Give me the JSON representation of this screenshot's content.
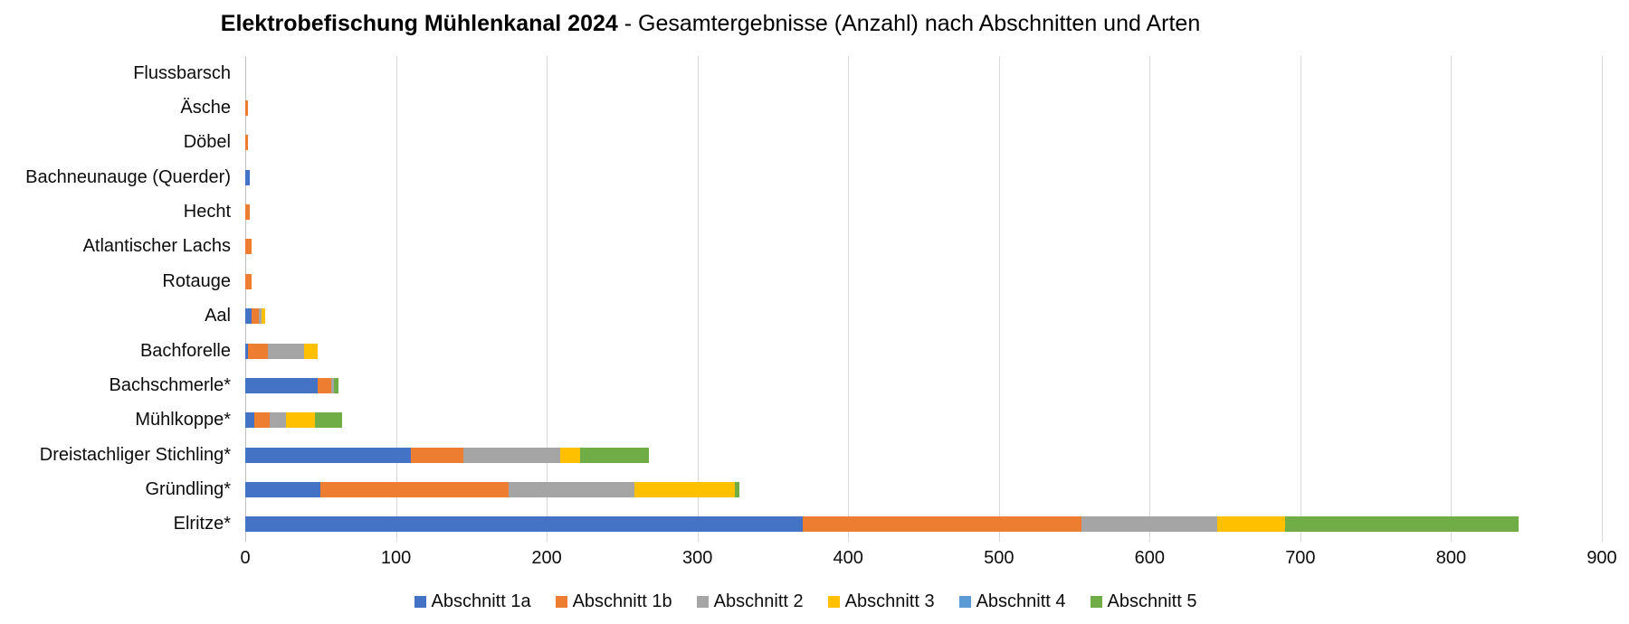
{
  "chart_data": {
    "type": "bar",
    "orientation": "horizontal",
    "stacked": true,
    "title_bold": "Elektrobefischung Mühlenkanal 2024",
    "title_rest": " - Gesamtergebnisse (Anzahl) nach Abschnitten und Arten",
    "xlabel": "",
    "ylabel": "",
    "xlim": [
      0,
      900
    ],
    "x_ticks": [
      0,
      100,
      200,
      300,
      400,
      500,
      600,
      700,
      800,
      900
    ],
    "grid": true,
    "legend_position": "bottom",
    "categories": [
      "Flussbarsch",
      "Äsche",
      "Döbel",
      "Bachneunauge (Querder)",
      "Hecht",
      "Atlantischer Lachs",
      "Rotauge",
      "Aal",
      "Bachforelle",
      "Bachschmerle*",
      "Mühlkoppe*",
      "Dreistachliger Stichling*",
      "Gründling*",
      "Elritze*"
    ],
    "series": [
      {
        "name": "Abschnitt 1a",
        "color": "#4472C4",
        "values": [
          0,
          0,
          0,
          3,
          0,
          0,
          0,
          4,
          2,
          48,
          6,
          110,
          50,
          370
        ]
      },
      {
        "name": "Abschnitt 1b",
        "color": "#ED7D31",
        "values": [
          0,
          2,
          2,
          0,
          3,
          4,
          4,
          5,
          13,
          9,
          10,
          35,
          125,
          185
        ]
      },
      {
        "name": "Abschnitt 2",
        "color": "#A5A5A5",
        "values": [
          0,
          0,
          0,
          0,
          0,
          0,
          0,
          2,
          24,
          2,
          11,
          64,
          83,
          90
        ]
      },
      {
        "name": "Abschnitt 3",
        "color": "#FFC000",
        "values": [
          0,
          0,
          0,
          0,
          0,
          0,
          0,
          2,
          9,
          0,
          19,
          13,
          67,
          45
        ]
      },
      {
        "name": "Abschnitt 4",
        "color": "#5B9BD5",
        "values": [
          0,
          0,
          0,
          0,
          0,
          0,
          0,
          0,
          0,
          0,
          0,
          0,
          0,
          0
        ]
      },
      {
        "name": "Abschnitt 5",
        "color": "#70AD47",
        "values": [
          0,
          0,
          0,
          0,
          0,
          0,
          0,
          0,
          0,
          3,
          18,
          46,
          3,
          155
        ]
      }
    ],
    "colors": {
      "gridline": "#D9D9D9",
      "axis_line": "#BFBFBF",
      "text": "#0d0d0d"
    }
  }
}
